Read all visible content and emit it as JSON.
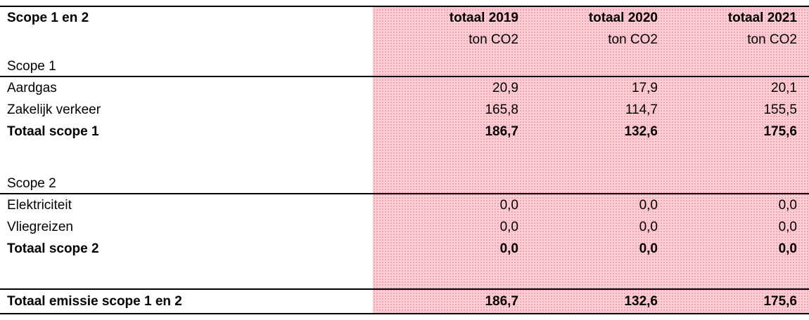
{
  "table": {
    "title": "Scope 1 en 2",
    "columns": [
      {
        "label": "totaal 2019",
        "unit": "ton CO2"
      },
      {
        "label": "totaal 2020",
        "unit": "ton CO2"
      },
      {
        "label": "totaal 2021",
        "unit": "ton CO2"
      }
    ],
    "sections": [
      {
        "label": "Scope 1",
        "rows": [
          {
            "label": "Aardgas",
            "values": [
              "20,9",
              "17,9",
              "20,1"
            ]
          },
          {
            "label": "Zakelijk verkeer",
            "values": [
              "165,8",
              "114,7",
              "155,5"
            ]
          },
          {
            "label": "Totaal scope 1",
            "values": [
              "186,7",
              "132,6",
              "175,6"
            ]
          }
        ]
      },
      {
        "label": "Scope 2",
        "rows": [
          {
            "label": "Elektriciteit",
            "values": [
              "0,0",
              "0,0",
              "0,0"
            ]
          },
          {
            "label": "Vliegreizen",
            "values": [
              "0,0",
              "0,0",
              "0,0"
            ]
          },
          {
            "label": "Totaal scope 2",
            "values": [
              "0,0",
              "0,0",
              "0,0"
            ]
          }
        ]
      }
    ],
    "grand_total": {
      "label": "Totaal emissie scope 1 en 2",
      "values": [
        "186,7",
        "132,6",
        "175,6"
      ]
    }
  },
  "colors": {
    "highlight_base": "#fccdd3",
    "highlight_dots": "#ef9cae",
    "rule": "#000000",
    "text": "#000000"
  }
}
